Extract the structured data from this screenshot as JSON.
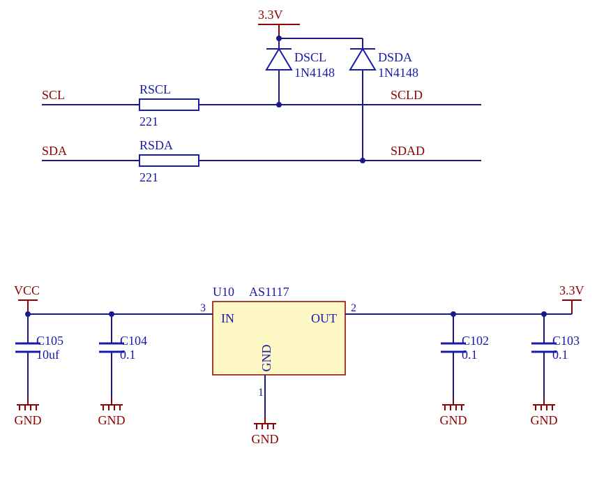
{
  "colors": {
    "wire": "#19198c",
    "label_text": "#8b0000",
    "value_text": "#1919aa",
    "designator_text": "#1919aa",
    "power_bar": "#8b0000",
    "power_text": "#8b0000",
    "ic_fill": "#fdf8c5",
    "ic_stroke": "#8b0000",
    "ic_text": "#1919aa",
    "pin_text": "#1919aa"
  },
  "fonts": {
    "label_size": 18,
    "value_size": 18,
    "power_size": 18,
    "pin_size": 16,
    "ic_size": 18
  },
  "power": {
    "v33_top": "3.3V",
    "vcc": "VCC",
    "v33_right": "3.3V",
    "gnd": "GND"
  },
  "netlabels": {
    "scl": "SCL",
    "sda": "SDA",
    "scld": "SCLD",
    "sdad": "SDAD"
  },
  "resistors": {
    "rscl": {
      "name": "RSCL",
      "value": "221"
    },
    "rsda": {
      "name": "RSDA",
      "value": "221"
    }
  },
  "diodes": {
    "dscl": {
      "name": "DSCL",
      "value": "1N4148"
    },
    "dsda": {
      "name": "DSDA",
      "value": "1N4148"
    }
  },
  "ic": {
    "designator": "U10",
    "part": "AS1117",
    "pins": {
      "in": {
        "num": "3",
        "name": "IN"
      },
      "out": {
        "num": "2",
        "name": "OUT"
      },
      "gnd": {
        "num": "1",
        "name": "GND"
      }
    }
  },
  "caps": {
    "c105": {
      "name": "C105",
      "value": "10uf"
    },
    "c104": {
      "name": "C104",
      "value": "0.1"
    },
    "c102": {
      "name": "C102",
      "value": "0.1"
    },
    "c103": {
      "name": "C103",
      "value": "0.1"
    }
  },
  "geometry": {
    "stroke_w": 2,
    "thin_w": 1.5
  }
}
